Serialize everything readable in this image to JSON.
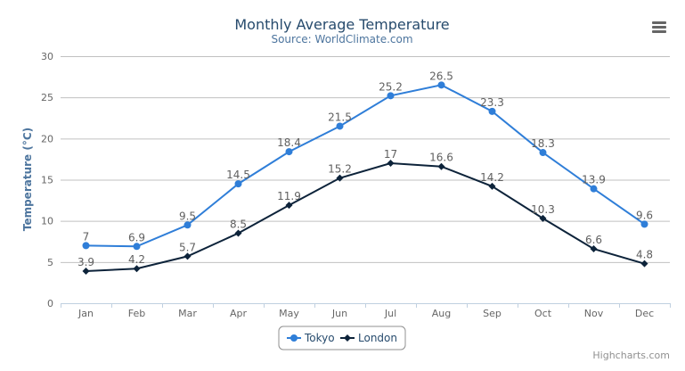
{
  "menu_icon": "hamburger-menu-icon",
  "credits": "Highcharts.com",
  "chart_data": {
    "type": "line",
    "title": "Monthly Average Temperature",
    "subtitle": "Source: WorldClimate.com",
    "ylabel": "Temperature (°C)",
    "xlabel": "",
    "ylim": [
      0,
      30
    ],
    "yticks": [
      0,
      5,
      10,
      15,
      20,
      25,
      30
    ],
    "grid": true,
    "legend_placement": "bottom-center",
    "categories": [
      "Jan",
      "Feb",
      "Mar",
      "Apr",
      "May",
      "Jun",
      "Jul",
      "Aug",
      "Sep",
      "Oct",
      "Nov",
      "Dec"
    ],
    "series": [
      {
        "name": "Tokyo",
        "color": "#2f7ed8",
        "marker": "circle",
        "values": [
          7.0,
          6.9,
          9.5,
          14.5,
          18.4,
          21.5,
          25.2,
          26.5,
          23.3,
          18.3,
          13.9,
          9.6
        ]
      },
      {
        "name": "London",
        "color": "#0d233a",
        "marker": "diamond",
        "values": [
          3.9,
          4.2,
          5.7,
          8.5,
          11.9,
          15.2,
          17.0,
          16.6,
          14.2,
          10.3,
          6.6,
          4.8
        ]
      }
    ]
  }
}
